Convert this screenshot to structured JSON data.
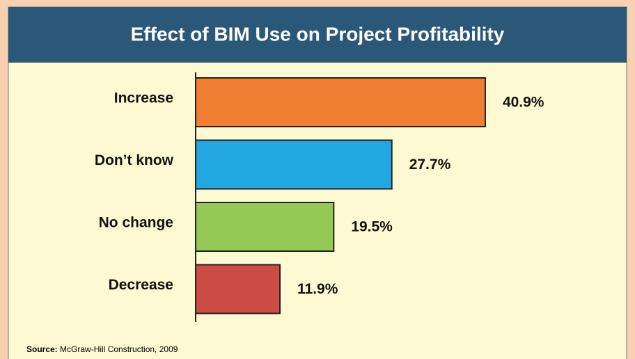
{
  "chart_data": {
    "type": "bar",
    "orientation": "horizontal",
    "title": "Effect of BIM Use on Project Profitability",
    "categories": [
      "Increase",
      "Don’t know",
      "No change",
      "Decrease"
    ],
    "values": [
      40.9,
      27.7,
      19.5,
      11.9
    ],
    "value_labels": [
      "40.9%",
      "27.7%",
      "19.5%",
      "11.9%"
    ],
    "colors": [
      "#f07f33",
      "#23a7e0",
      "#95c956",
      "#cc4b45"
    ],
    "source_label": "Source:",
    "source": "McGraw-Hill Construction, 2009"
  }
}
